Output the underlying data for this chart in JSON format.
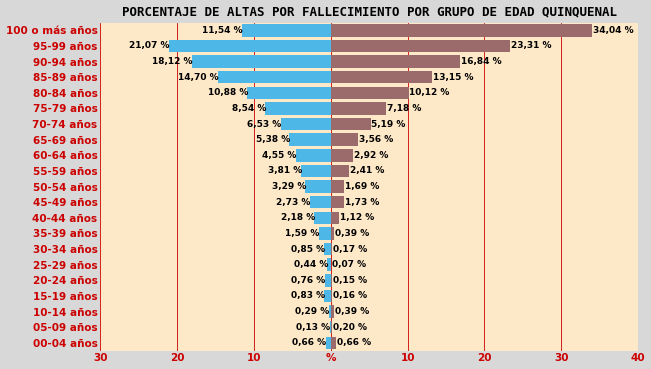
{
  "title": "PORCENTAJE DE ALTAS POR FALLECIMIENTO POR GRUPO DE EDAD QUINQUENAL",
  "categories": [
    "100 o más años",
    "95-99 años",
    "90-94 años",
    "85-89 años",
    "80-84 años",
    "75-79 años",
    "70-74 años",
    "65-69 años",
    "60-64 años",
    "55-59 años",
    "50-54 años",
    "45-49 años",
    "40-44 años",
    "35-39 años",
    "30-34 años",
    "25-29 años",
    "20-24 años",
    "15-19 años",
    "10-14 años",
    "05-09 años",
    "00-04 años"
  ],
  "female_vals": [
    11.54,
    21.07,
    18.12,
    14.7,
    10.88,
    8.54,
    6.53,
    5.38,
    4.55,
    3.81,
    3.29,
    2.73,
    2.18,
    1.59,
    0.85,
    0.44,
    0.76,
    0.83,
    0.29,
    0.13,
    0.66
  ],
  "male_vals": [
    34.04,
    23.31,
    16.84,
    13.15,
    10.12,
    7.18,
    5.19,
    3.56,
    2.92,
    2.41,
    1.69,
    1.73,
    1.12,
    0.39,
    0.17,
    0.07,
    0.15,
    0.16,
    0.39,
    0.2,
    0.66
  ],
  "female_color": "#4db8e8",
  "male_color": "#9b6b6b",
  "plot_bg_color": "#fde8c8",
  "outer_bg_color": "#d8d8d8",
  "ylabel_color": "#cc0000",
  "tick_color": "#cc0000",
  "grid_color": "#cc0000",
  "title_fontsize": 9,
  "tick_fontsize": 7.5,
  "label_fontsize": 6.5,
  "bar_height": 0.8,
  "xlim_left": 30,
  "xlim_right": 40
}
